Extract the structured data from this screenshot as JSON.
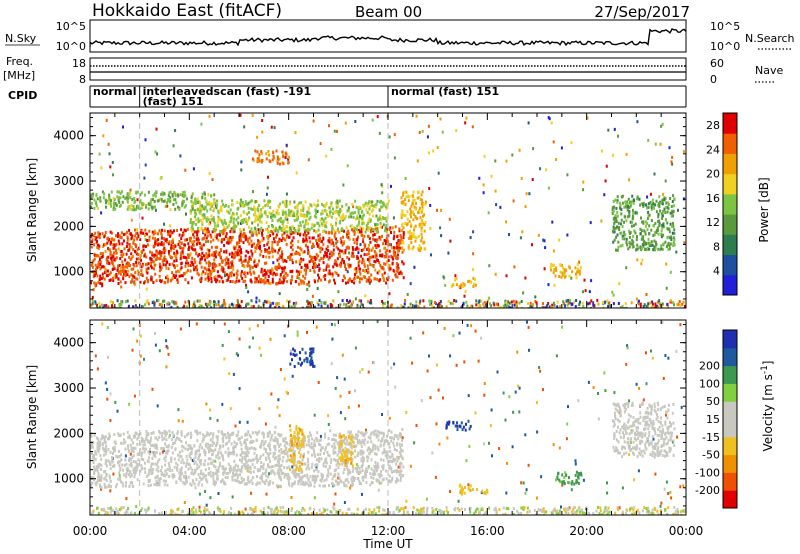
{
  "header": {
    "radar": "Hokkaido East (fitACF)",
    "beam": "Beam 00",
    "date": "27/Sep/2017"
  },
  "top_panels": {
    "nsky_label": "N.Sky",
    "nsearch_label": "N.Search",
    "nsky_ticks": [
      "10^5",
      "10^0"
    ],
    "nsearch_ticks": [
      "10^5",
      "10^0"
    ],
    "freq_label": "Freq.",
    "freq_unit": "[MHz]",
    "freq_ticks": [
      "18",
      "8"
    ],
    "nave_label": "Nave",
    "nave_ticks": [
      "60",
      "0"
    ],
    "cpid_label": "CPID",
    "cpid_segments": [
      {
        "start": 0.0,
        "end": 2.0,
        "text": "normal"
      },
      {
        "start": 2.0,
        "end": 12.0,
        "text": "interleavedscan (fast) -191"
      },
      {
        "start": 2.0,
        "end": 12.0,
        "text": "(fast) 151"
      },
      {
        "start": 12.0,
        "end": 24.0,
        "text": "normal (fast) 151"
      }
    ]
  },
  "colors": {
    "power_scale": [
      "#2020d8",
      "#1f4fa0",
      "#2e7d4f",
      "#5a9a3c",
      "#7cc441",
      "#f0d020",
      "#f0a000",
      "#f06000",
      "#e00000"
    ],
    "velocity_scale": [
      "#e00000",
      "#f05000",
      "#f09000",
      "#f0c020",
      "#c8c8c0",
      "#c8c8c0",
      "#80d040",
      "#3c9a50",
      "#1f5aa0",
      "#1f2fb0"
    ]
  },
  "chart_data": [
    {
      "type": "heatmap",
      "name": "power",
      "xlabel": "Time UT",
      "ylabel": "Slant Range [km]",
      "x_ticks": [
        "00:00",
        "04:00",
        "08:00",
        "12:00",
        "16:00",
        "20:00",
        "00:00"
      ],
      "xlim": [
        0,
        24
      ],
      "ylim": [
        200,
        4500
      ],
      "y_ticks": [
        "1000",
        "2000",
        "3000",
        "4000"
      ],
      "colorbar_label": "Power [dB]",
      "colorbar_ticks": [
        "4",
        "8",
        "12",
        "16",
        "20",
        "24",
        "28"
      ],
      "colorbar_range": [
        0,
        30
      ],
      "regions": [
        {
          "t0": 0.0,
          "t1": 12.6,
          "r0": 700,
          "r1": 1900,
          "value": 26
        },
        {
          "t0": 0.0,
          "t1": 5.0,
          "r0": 2400,
          "r1": 2800,
          "value": 14
        },
        {
          "t0": 4.0,
          "t1": 12.0,
          "r0": 1900,
          "r1": 2600,
          "value": 16
        },
        {
          "t0": 6.5,
          "t1": 8.0,
          "r0": 3400,
          "r1": 3700,
          "value": 24
        },
        {
          "t0": 12.5,
          "t1": 13.5,
          "r0": 1500,
          "r1": 2800,
          "value": 20
        },
        {
          "t0": 14.5,
          "t1": 15.5,
          "r0": 700,
          "r1": 900,
          "value": 20
        },
        {
          "t0": 18.5,
          "t1": 19.8,
          "r0": 900,
          "r1": 1200,
          "value": 20
        },
        {
          "t0": 21.0,
          "t1": 23.5,
          "r0": 1500,
          "r1": 2700,
          "value": 12
        }
      ]
    },
    {
      "type": "heatmap",
      "name": "velocity",
      "xlabel": "Time UT",
      "ylabel": "Slant Range [km]",
      "x_ticks": [
        "00:00",
        "04:00",
        "08:00",
        "12:00",
        "16:00",
        "20:00",
        "00:00"
      ],
      "xlim": [
        0,
        24
      ],
      "ylim": [
        200,
        4500
      ],
      "y_ticks": [
        "1000",
        "2000",
        "3000",
        "4000"
      ],
      "colorbar_label": "Velocity [m s^-1]",
      "colorbar_ticks": [
        "-200",
        "-100",
        "-50",
        "-15",
        "15",
        "50",
        "100",
        "200"
      ],
      "regions": [
        {
          "t0": 0.0,
          "t1": 12.6,
          "r0": 800,
          "r1": 2000,
          "value": 0
        },
        {
          "t0": 8.0,
          "t1": 8.6,
          "r0": 1200,
          "r1": 2200,
          "value": -40
        },
        {
          "t0": 10.0,
          "t1": 10.6,
          "r0": 1300,
          "r1": 2000,
          "value": -40
        },
        {
          "t0": 14.3,
          "t1": 15.3,
          "r0": 2100,
          "r1": 2300,
          "value": 200
        },
        {
          "t0": 14.8,
          "t1": 16.0,
          "r0": 700,
          "r1": 900,
          "value": -40
        },
        {
          "t0": 18.7,
          "t1": 19.8,
          "r0": 900,
          "r1": 1200,
          "value": 60
        },
        {
          "t0": 8.0,
          "t1": 9.0,
          "r0": 3500,
          "r1": 3900,
          "value": 200
        },
        {
          "t0": 21.0,
          "t1": 23.5,
          "r0": 1500,
          "r1": 2700,
          "value": 0
        }
      ]
    }
  ]
}
